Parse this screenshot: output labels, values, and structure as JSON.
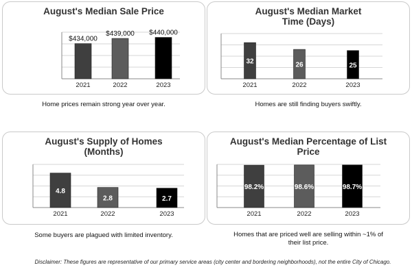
{
  "chart_data": [
    {
      "type": "bar",
      "title": "August's Median Sale Price",
      "categories": [
        "2021",
        "2022",
        "2023"
      ],
      "values": [
        434000,
        439000,
        440000
      ],
      "labels": [
        "$434,000",
        "$439,000",
        "$440,000"
      ],
      "label_position": "above",
      "ylim": [
        400000,
        445000
      ],
      "grid": true,
      "colors": [
        "#3f3f3f",
        "#5c5c5c",
        "#000000"
      ],
      "caption": "Home prices remain strong year over year."
    },
    {
      "type": "bar",
      "title": "August's Median Market Time (Days)",
      "categories": [
        "2021",
        "2022",
        "2023"
      ],
      "values": [
        32,
        26,
        25
      ],
      "labels": [
        "32",
        "26",
        "25"
      ],
      "label_position": "inside",
      "ylim": [
        0,
        40
      ],
      "grid": true,
      "colors": [
        "#3f3f3f",
        "#5c5c5c",
        "#000000"
      ],
      "caption": "Homes are still finding buyers swiftly."
    },
    {
      "type": "bar",
      "title": "August's Supply of Homes (Months)",
      "categories": [
        "2021",
        "2022",
        "2023"
      ],
      "values": [
        4.8,
        2.8,
        2.7
      ],
      "labels": [
        "4.8",
        "2.8",
        "2.7"
      ],
      "label_position": "inside",
      "ylim": [
        0,
        6
      ],
      "grid": true,
      "colors": [
        "#3f3f3f",
        "#5c5c5c",
        "#000000"
      ],
      "caption": "Some buyers are plagued with limited inventory."
    },
    {
      "type": "bar",
      "title": "August's Median Percentage of List Price",
      "categories": [
        "2021",
        "2022",
        "2023"
      ],
      "values": [
        98.2,
        98.6,
        98.7
      ],
      "labels": [
        "98.2%",
        "98.6%",
        "98.7%"
      ],
      "label_position": "inside",
      "ylim": [
        0,
        100
      ],
      "grid": true,
      "colors": [
        "#3f3f3f",
        "#5c5c5c",
        "#000000"
      ],
      "caption": "Homes that are priced well are selling within ~1% of their list price."
    }
  ],
  "disclaimer": "Disclaimer: These figures are representative of our primary service areas (city center and bordering neighborhoods), not the entire City of Chicago."
}
